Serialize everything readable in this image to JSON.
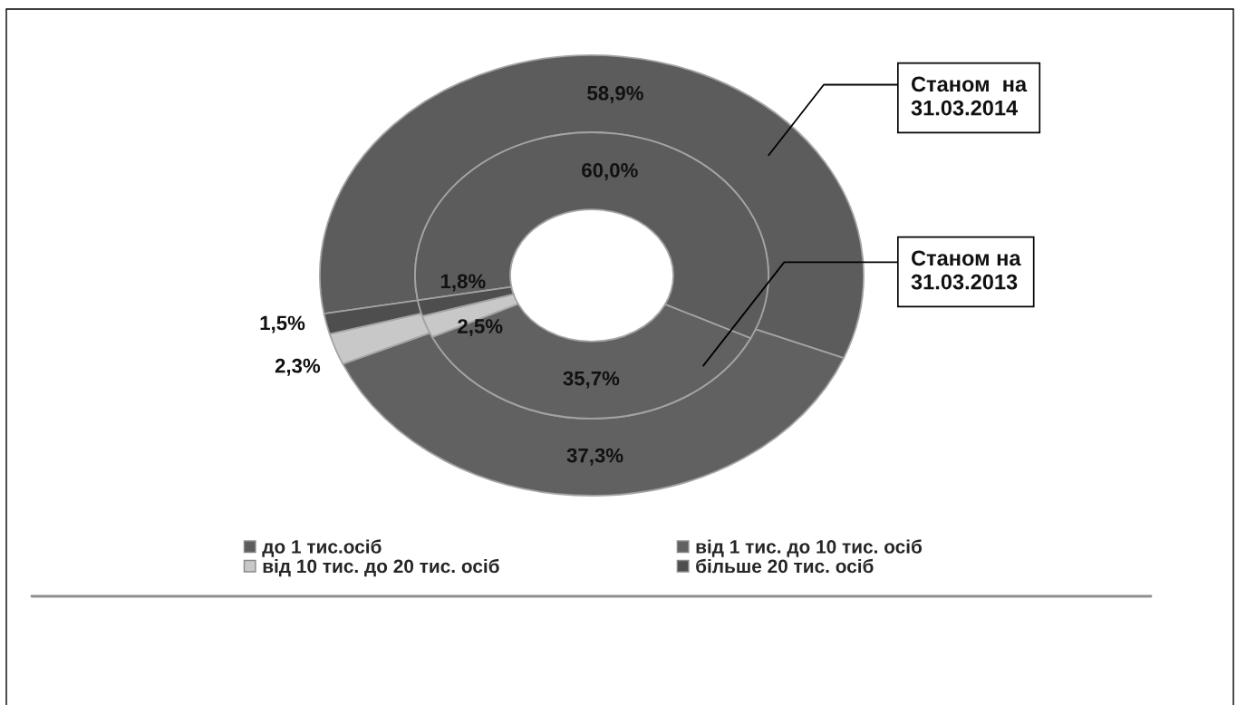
{
  "chart_data": {
    "type": "donut",
    "categories": [
      "до 1 тис.осіб",
      "від 1 тис. до 10 тис. осіб",
      "від 10 тис. до 20 тис. осіб",
      "більше 20 тис. осіб"
    ],
    "colors": [
      "#5c5c5c",
      "#616161",
      "#c8c8c8",
      "#4e4e4e"
    ],
    "series": [
      {
        "name": "Станом  на 31.03.2014",
        "values": [
          58.9,
          37.3,
          2.3,
          1.5
        ],
        "value_labels": [
          "58,9%",
          "37,3%",
          "2,3%",
          "1,5%"
        ]
      },
      {
        "name": "Станом на 31.03.2013",
        "values": [
          60.0,
          35.7,
          2.5,
          1.8
        ],
        "value_labels": [
          "60,0%",
          "35,7%",
          "2,5%",
          "1,8%"
        ]
      }
    ],
    "legend": "bottom"
  }
}
